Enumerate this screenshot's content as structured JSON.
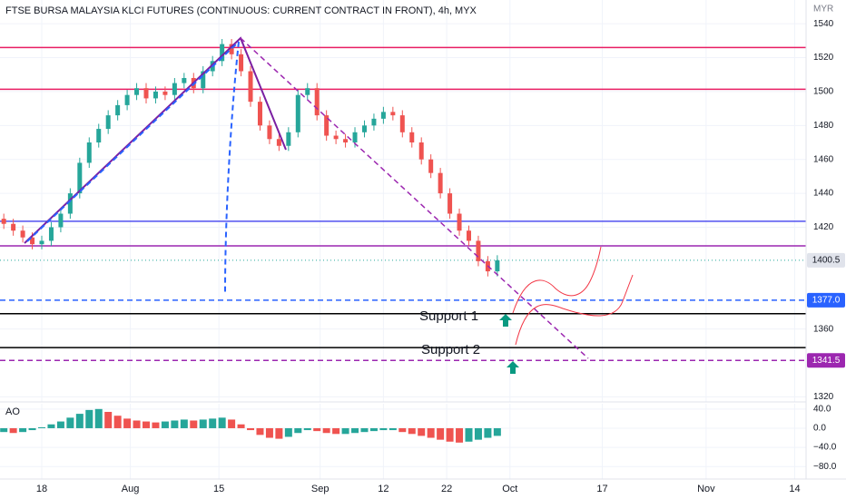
{
  "chart_data": [
    {
      "type": "candlestick",
      "title": "FTSE BURSA MALAYSIA KLCI FUTURES (CONTINUOUS: CURRENT CONTRACT IN FRONT), 4h, MYX",
      "currency": "MYR",
      "x": [
        -2,
        -0.5,
        1,
        2.5,
        4,
        5.5,
        7,
        8.5,
        10,
        11.5,
        13,
        14.5,
        16,
        17.5,
        19,
        20.5,
        22,
        23.5,
        25,
        26.5,
        28,
        29.5,
        31,
        32.5,
        34,
        35.5,
        37,
        38.5,
        40,
        41.5,
        43,
        44.5,
        46,
        47.5,
        49,
        50.5,
        52,
        53.5,
        55,
        56.5,
        58,
        59.5,
        61,
        62.5,
        64,
        65.5,
        67,
        68.5,
        70,
        71.5,
        73,
        74.5,
        76
      ],
      "open": [
        1425,
        1422,
        1418,
        1414,
        1410,
        1412,
        1420,
        1428,
        1440,
        1458,
        1470,
        1478,
        1486,
        1492,
        1498,
        1502,
        1496,
        1500,
        1498,
        1505,
        1508,
        1502,
        1512,
        1518,
        1528,
        1522,
        1512,
        1494,
        1480,
        1472,
        1468,
        1476,
        1498,
        1502,
        1486,
        1474,
        1472,
        1470,
        1476,
        1480,
        1484,
        1488,
        1486,
        1476,
        1470,
        1460,
        1452,
        1440,
        1428,
        1418,
        1412,
        1400,
        1394
      ],
      "high": [
        1428,
        1425,
        1421,
        1417,
        1415,
        1423,
        1431,
        1443,
        1461,
        1473,
        1481,
        1489,
        1495,
        1501,
        1505,
        1505,
        1503,
        1503,
        1508,
        1511,
        1511,
        1515,
        1521,
        1531,
        1531,
        1525,
        1515,
        1497,
        1483,
        1475,
        1479,
        1501,
        1505,
        1505,
        1489,
        1477,
        1475,
        1479,
        1483,
        1487,
        1491,
        1491,
        1489,
        1479,
        1473,
        1463,
        1455,
        1443,
        1431,
        1421,
        1415,
        1403,
        1403.5
      ],
      "low": [
        1419,
        1415,
        1411,
        1407,
        1407,
        1409,
        1417,
        1425,
        1437,
        1455,
        1467,
        1475,
        1483,
        1489,
        1495,
        1493,
        1493,
        1495,
        1495,
        1502,
        1499,
        1499,
        1509,
        1515,
        1519,
        1509,
        1491,
        1477,
        1469,
        1465,
        1465,
        1473,
        1495,
        1483,
        1471,
        1469,
        1467,
        1467,
        1473,
        1477,
        1481,
        1483,
        1473,
        1467,
        1457,
        1449,
        1437,
        1425,
        1415,
        1409,
        1397,
        1391,
        1391
      ],
      "close": [
        1422,
        1418,
        1414,
        1410,
        1412,
        1420,
        1428,
        1440,
        1458,
        1470,
        1478,
        1486,
        1492,
        1498,
        1502,
        1496,
        1500,
        1498,
        1505,
        1508,
        1502,
        1512,
        1518,
        1528,
        1522,
        1512,
        1494,
        1480,
        1472,
        1468,
        1476,
        1498,
        1502,
        1486,
        1474,
        1472,
        1470,
        1476,
        1480,
        1484,
        1488,
        1486,
        1476,
        1470,
        1460,
        1452,
        1440,
        1428,
        1418,
        1412,
        1400,
        1394,
        1400.5
      ],
      "up_color": "#26a69a",
      "down_color": "#ef5350",
      "xlim": [
        -2.6,
        124.8
      ],
      "xticks": [
        {
          "value": 4,
          "label": "18"
        },
        {
          "value": 18,
          "label": "Aug"
        },
        {
          "value": 32,
          "label": "15"
        },
        {
          "value": 48,
          "label": "Sep"
        },
        {
          "value": 58,
          "label": "12"
        },
        {
          "value": 68,
          "label": "22"
        },
        {
          "value": 78,
          "label": "Oct"
        },
        {
          "value": 92.6,
          "label": "17"
        },
        {
          "value": 109,
          "label": "Nov"
        },
        {
          "value": 123,
          "label": "14"
        }
      ],
      "ylim": [
        1317,
        1554
      ],
      "yticks": [
        1320,
        1360,
        1420,
        1440,
        1460,
        1480,
        1500,
        1520,
        1540
      ],
      "grid": true,
      "levels": [
        {
          "value": 1526,
          "color": "#e91e63",
          "style": "solid"
        },
        {
          "value": 1501.4,
          "color": "#e91e63",
          "style": "solid"
        },
        {
          "value": 1423.5,
          "color": "#5050f0",
          "style": "solid"
        },
        {
          "value": 1409,
          "color": "#9c27b0",
          "style": "solid"
        },
        {
          "value": 1400.5,
          "color": "#26a69a",
          "style": "dotted",
          "tag_color": "#e0e3eb",
          "tag_text_color": "#131722"
        },
        {
          "value": 1377,
          "label": "1377.0",
          "color": "#2962ff",
          "style": "dashed",
          "tag_color": "#2962ff",
          "tag_text_color": "#ffffff"
        },
        {
          "value": 1369,
          "color": "#000000",
          "style": "solid"
        },
        {
          "value": 1349,
          "color": "#000000",
          "style": "solid"
        },
        {
          "value": 1341.5,
          "color": "#9c27b0",
          "style": "dashed",
          "tag_color": "#9c27b0",
          "tag_text_color": "#ffffff"
        }
      ],
      "annotations": [
        "Support 1",
        "Support 2"
      ]
    },
    {
      "type": "bar",
      "title": "AO",
      "x": [
        -2,
        -0.5,
        1,
        2.5,
        4,
        5.5,
        7,
        8.5,
        10,
        11.5,
        13,
        14.5,
        16,
        17.5,
        19,
        20.5,
        22,
        23.5,
        25,
        26.5,
        28,
        29.5,
        31,
        32.5,
        34,
        35.5,
        37,
        38.5,
        40,
        41.5,
        43,
        44.5,
        46,
        47.5,
        49,
        50.5,
        52,
        53.5,
        55,
        56.5,
        58,
        59.5,
        61,
        62.5,
        64,
        65.5,
        67,
        68.5,
        70,
        71.5,
        73,
        74.5,
        76
      ],
      "values": [
        -8,
        -10,
        -8,
        -4,
        2,
        8,
        14,
        22,
        30,
        38,
        40,
        34,
        26,
        20,
        16,
        14,
        12,
        14,
        16,
        18,
        16,
        18,
        20,
        22,
        18,
        8,
        -4,
        -14,
        -20,
        -22,
        -18,
        -10,
        -4,
        -6,
        -10,
        -12,
        -12,
        -10,
        -8,
        -6,
        -4,
        -4,
        -8,
        -12,
        -16,
        -20,
        -24,
        -28,
        -30,
        -28,
        -24,
        -20,
        -16
      ],
      "up_color": "#26a69a",
      "down_color": "#ef5350",
      "ylim": [
        -106,
        51
      ],
      "yticks": [
        {
          "value": 40,
          "label": "40.0"
        },
        {
          "value": 0,
          "label": "0.0"
        },
        {
          "value": -40,
          "label": "−40.0"
        },
        {
          "value": -80,
          "label": "−80.0"
        }
      ]
    }
  ]
}
